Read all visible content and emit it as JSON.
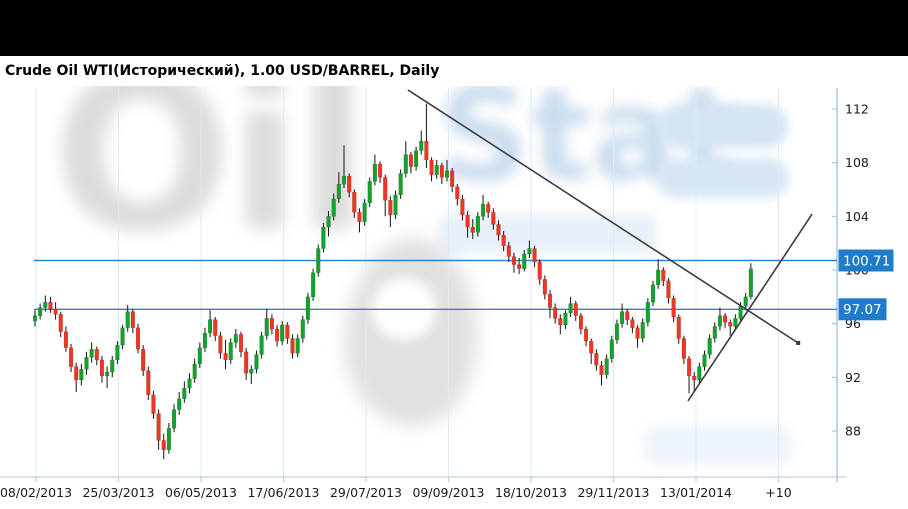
{
  "title": "Crude Oil WTI(Исторический), 1.00 USD/BARREL, Daily",
  "watermark": {
    "part1": "Oil",
    "part2": "Stat"
  },
  "chart_data": {
    "type": "candlestick",
    "instrument": "Crude Oil WTI",
    "instrument_note": "Исторический",
    "unit": "1.00 USD/BARREL",
    "interval": "Daily",
    "legend_position": "none",
    "grid": "vertical-only",
    "y_axis": {
      "side": "right",
      "ticks": [
        112,
        108,
        104,
        100,
        96,
        92,
        88
      ],
      "min": 85.5,
      "max": 113.5
    },
    "x_axis": {
      "labels": [
        "08/02/2013",
        "25/03/2013",
        "06/05/2013",
        "17/06/2013",
        "29/07/2013",
        "09/09/2013",
        "18/10/2013",
        "29/11/2013",
        "13/01/2014",
        "+10"
      ]
    },
    "price_lines": [
      {
        "label": "100.71",
        "value": 100.71
      },
      {
        "label": "97.07",
        "value": 97.07
      }
    ],
    "trend_lines": [
      {
        "name": "descending-resistance",
        "from": {
          "bar": 72.4,
          "price": 113.42
        },
        "to": {
          "bar": 148.2,
          "price": 94.56
        },
        "end_marker": true
      },
      {
        "name": "ascending-support",
        "from": {
          "bar": 126.8,
          "price": 90.24
        },
        "to": {
          "bar": 150.9,
          "price": 104.17
        },
        "end_marker": false
      }
    ],
    "colors": {
      "up": "#14a12c",
      "down": "#ef3524",
      "wick": "#141414",
      "price_line": "#2e83d4",
      "badge": "#1f7ccd",
      "badge_text": "#ffffff",
      "grid": "#dcebf7",
      "axis": "#aac9e4",
      "bottom_axis": "#c2cfd9",
      "tick_text": "#1a1a1a",
      "trend": "#3c3c3c"
    },
    "candles": [
      [
        96.2,
        97.0,
        95.8,
        96.6
      ],
      [
        96.6,
        97.5,
        96.3,
        97.2
      ],
      [
        97.2,
        98.1,
        96.9,
        97.6
      ],
      [
        97.6,
        98.0,
        96.8,
        97.1
      ],
      [
        97.1,
        97.6,
        96.3,
        96.7
      ],
      [
        96.7,
        96.9,
        95.0,
        95.4
      ],
      [
        95.4,
        95.8,
        93.9,
        94.2
      ],
      [
        94.2,
        94.5,
        92.4,
        92.8
      ],
      [
        92.8,
        93.1,
        90.9,
        91.8
      ],
      [
        91.8,
        93.0,
        91.4,
        92.6
      ],
      [
        92.6,
        93.9,
        92.2,
        93.5
      ],
      [
        93.5,
        94.6,
        93.1,
        94.1
      ],
      [
        94.1,
        94.3,
        92.9,
        93.3
      ],
      [
        93.3,
        93.6,
        91.6,
        92.1
      ],
      [
        92.1,
        92.8,
        91.2,
        92.4
      ],
      [
        92.4,
        93.6,
        92.0,
        93.3
      ],
      [
        93.3,
        94.7,
        93.0,
        94.4
      ],
      [
        94.4,
        95.9,
        94.1,
        95.7
      ],
      [
        95.7,
        97.4,
        95.4,
        96.9
      ],
      [
        96.9,
        97.1,
        95.3,
        95.7
      ],
      [
        95.7,
        96.0,
        93.8,
        94.1
      ],
      [
        94.1,
        94.4,
        92.1,
        92.5
      ],
      [
        92.5,
        92.8,
        90.3,
        90.7
      ],
      [
        90.7,
        91.0,
        88.9,
        89.3
      ],
      [
        89.3,
        89.6,
        86.6,
        87.3
      ],
      [
        87.3,
        87.8,
        85.9,
        86.6
      ],
      [
        86.6,
        88.6,
        86.3,
        88.2
      ],
      [
        88.2,
        90.0,
        87.9,
        89.6
      ],
      [
        89.6,
        90.9,
        89.2,
        90.4
      ],
      [
        90.4,
        91.7,
        90.1,
        91.2
      ],
      [
        91.2,
        92.3,
        90.8,
        91.9
      ],
      [
        91.9,
        93.4,
        91.6,
        93.0
      ],
      [
        93.0,
        94.6,
        92.7,
        94.2
      ],
      [
        94.2,
        95.7,
        93.9,
        95.3
      ],
      [
        95.3,
        97.0,
        95.0,
        96.3
      ],
      [
        96.3,
        96.5,
        94.7,
        95.1
      ],
      [
        95.1,
        95.4,
        93.4,
        93.8
      ],
      [
        93.8,
        94.8,
        92.6,
        93.3
      ],
      [
        93.3,
        94.9,
        93.0,
        94.6
      ],
      [
        94.6,
        95.6,
        94.2,
        95.2
      ],
      [
        95.2,
        95.4,
        93.5,
        93.9
      ],
      [
        93.9,
        94.2,
        91.8,
        92.3
      ],
      [
        92.3,
        92.9,
        91.5,
        92.6
      ],
      [
        92.6,
        94.0,
        92.3,
        93.7
      ],
      [
        93.7,
        95.4,
        93.4,
        95.1
      ],
      [
        95.1,
        97.1,
        94.8,
        96.4
      ],
      [
        96.4,
        96.7,
        95.2,
        95.6
      ],
      [
        95.6,
        95.9,
        94.3,
        94.7
      ],
      [
        94.7,
        96.2,
        94.4,
        95.9
      ],
      [
        95.9,
        96.1,
        94.5,
        94.9
      ],
      [
        94.9,
        95.2,
        93.4,
        93.8
      ],
      [
        93.8,
        95.2,
        93.5,
        94.9
      ],
      [
        94.9,
        96.6,
        94.6,
        96.3
      ],
      [
        96.3,
        98.3,
        96.0,
        98.0
      ],
      [
        98.0,
        100.1,
        97.7,
        99.8
      ],
      [
        99.8,
        101.9,
        99.5,
        101.6
      ],
      [
        101.6,
        103.5,
        101.3,
        103.2
      ],
      [
        103.2,
        104.4,
        102.5,
        104.0
      ],
      [
        104.0,
        105.7,
        103.7,
        105.3
      ],
      [
        105.3,
        107.3,
        105.0,
        106.4
      ],
      [
        106.4,
        109.3,
        106.1,
        107.0
      ],
      [
        107.0,
        107.2,
        105.4,
        105.8
      ],
      [
        105.8,
        106.0,
        103.9,
        104.3
      ],
      [
        104.3,
        104.6,
        102.8,
        103.6
      ],
      [
        103.6,
        105.3,
        103.3,
        105.0
      ],
      [
        105.0,
        106.9,
        104.7,
        106.6
      ],
      [
        106.6,
        108.6,
        106.3,
        107.9
      ],
      [
        107.9,
        108.1,
        106.5,
        106.9
      ],
      [
        106.9,
        107.1,
        104.0,
        105.2
      ],
      [
        105.2,
        105.5,
        103.2,
        104.1
      ],
      [
        104.1,
        105.9,
        103.8,
        105.6
      ],
      [
        105.6,
        107.5,
        105.3,
        107.2
      ],
      [
        107.2,
        109.6,
        106.9,
        108.6
      ],
      [
        108.6,
        108.8,
        107.2,
        107.7
      ],
      [
        107.7,
        109.2,
        107.4,
        108.9
      ],
      [
        108.9,
        110.4,
        108.6,
        109.6
      ],
      [
        109.6,
        112.4,
        107.6,
        108.2
      ],
      [
        108.2,
        108.4,
        106.6,
        107.1
      ],
      [
        107.1,
        108.2,
        106.8,
        107.8
      ],
      [
        107.8,
        108.0,
        106.4,
        106.9
      ],
      [
        106.9,
        108.2,
        106.6,
        107.4
      ],
      [
        107.4,
        107.6,
        105.8,
        106.2
      ],
      [
        106.2,
        106.4,
        104.8,
        105.3
      ],
      [
        105.3,
        105.6,
        103.7,
        104.1
      ],
      [
        104.1,
        104.4,
        102.4,
        103.2
      ],
      [
        103.2,
        103.8,
        102.3,
        102.8
      ],
      [
        102.8,
        104.3,
        102.5,
        104.0
      ],
      [
        104.0,
        105.6,
        103.7,
        104.9
      ],
      [
        104.9,
        105.1,
        103.9,
        104.3
      ],
      [
        104.3,
        104.6,
        103.0,
        103.4
      ],
      [
        103.4,
        103.7,
        102.2,
        102.6
      ],
      [
        102.6,
        102.9,
        101.4,
        101.8
      ],
      [
        101.8,
        102.1,
        100.6,
        101.0
      ],
      [
        101.0,
        101.3,
        99.8,
        100.4
      ],
      [
        100.4,
        100.9,
        99.7,
        100.1
      ],
      [
        100.1,
        101.5,
        99.9,
        101.2
      ],
      [
        101.2,
        102.2,
        100.9,
        101.6
      ],
      [
        101.6,
        101.8,
        100.2,
        100.6
      ],
      [
        100.6,
        100.8,
        98.9,
        99.3
      ],
      [
        99.3,
        99.6,
        97.8,
        98.2
      ],
      [
        98.2,
        98.5,
        96.4,
        97.2
      ],
      [
        97.2,
        97.5,
        96.0,
        96.4
      ],
      [
        96.4,
        96.7,
        95.2,
        95.9
      ],
      [
        95.9,
        97.0,
        95.6,
        96.8
      ],
      [
        96.8,
        98.0,
        96.5,
        97.5
      ],
      [
        97.5,
        97.7,
        96.2,
        96.6
      ],
      [
        96.6,
        96.8,
        95.2,
        95.6
      ],
      [
        95.6,
        95.8,
        94.3,
        94.7
      ],
      [
        94.7,
        94.9,
        93.0,
        93.8
      ],
      [
        93.8,
        94.1,
        92.5,
        92.9
      ],
      [
        92.9,
        93.2,
        91.4,
        92.2
      ],
      [
        92.2,
        93.7,
        91.9,
        93.4
      ],
      [
        93.4,
        95.1,
        93.1,
        94.8
      ],
      [
        94.8,
        96.3,
        94.5,
        96.0
      ],
      [
        96.0,
        97.5,
        95.7,
        96.9
      ],
      [
        96.9,
        97.1,
        95.9,
        96.3
      ],
      [
        96.3,
        96.5,
        95.3,
        95.7
      ],
      [
        95.7,
        95.9,
        94.2,
        94.9
      ],
      [
        94.9,
        96.4,
        94.6,
        96.1
      ],
      [
        96.1,
        97.9,
        95.8,
        97.6
      ],
      [
        97.6,
        99.2,
        97.3,
        98.9
      ],
      [
        98.9,
        100.8,
        98.6,
        100.0
      ],
      [
        100.0,
        100.2,
        98.8,
        99.2
      ],
      [
        99.2,
        99.4,
        97.5,
        97.9
      ],
      [
        97.9,
        98.1,
        96.1,
        96.5
      ],
      [
        96.5,
        96.7,
        94.5,
        94.9
      ],
      [
        94.9,
        95.1,
        93.0,
        93.4
      ],
      [
        93.4,
        93.6,
        90.8,
        92.1
      ],
      [
        92.1,
        92.4,
        90.9,
        91.8
      ],
      [
        91.8,
        93.1,
        91.5,
        92.8
      ],
      [
        92.8,
        94.0,
        92.5,
        93.7
      ],
      [
        93.7,
        95.2,
        93.4,
        94.9
      ],
      [
        94.9,
        96.1,
        94.6,
        95.8
      ],
      [
        95.8,
        97.2,
        95.5,
        96.6
      ],
      [
        96.6,
        96.8,
        95.7,
        96.1
      ],
      [
        96.1,
        96.3,
        95.1,
        95.8
      ],
      [
        95.8,
        96.7,
        95.5,
        96.4
      ],
      [
        96.4,
        97.6,
        96.1,
        97.3
      ],
      [
        97.3,
        98.3,
        97.0,
        98.0
      ],
      [
        98.0,
        100.5,
        97.8,
        100.1
      ]
    ]
  }
}
